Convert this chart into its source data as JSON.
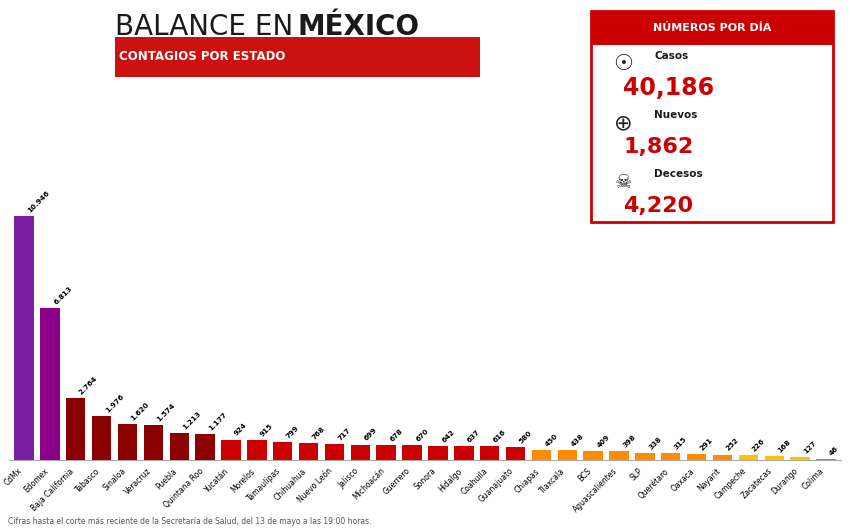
{
  "categories": [
    "CdMx",
    "Edomex",
    "Baja California",
    "Tabasco",
    "Sinaloa",
    "Veracruz",
    "Puebla",
    "Quintana Roo",
    "Yucatán",
    "Morelos",
    "Tamaulipas",
    "Chihuahua",
    "Nuevo León",
    "Jalisco",
    "Michoacán",
    "Guerrero",
    "Sonora",
    "Hidalgo",
    "Coahuila",
    "Guanajuato",
    "Chiapas",
    "Tlaxcala",
    "BCS",
    "Aguascalientes",
    "SLP",
    "Querétaro",
    "Oaxaca",
    "Nayarit",
    "Campeche",
    "Zacatecas",
    "Durango",
    "Colima"
  ],
  "values": [
    10946,
    6813,
    2764,
    1976,
    1620,
    1574,
    1213,
    1177,
    924,
    915,
    799,
    768,
    717,
    699,
    678,
    670,
    642,
    637,
    616,
    580,
    450,
    438,
    409,
    398,
    338,
    315,
    291,
    252,
    226,
    168,
    127,
    46
  ],
  "bar_colors": [
    "#7B1FA2",
    "#8B008B",
    "#8B0000",
    "#8B0000",
    "#8B0000",
    "#8B0000",
    "#8B0000",
    "#8B0000",
    "#CC0000",
    "#CC0000",
    "#CC0000",
    "#CC0000",
    "#CC0000",
    "#CC0000",
    "#CC0000",
    "#CC0000",
    "#CC0000",
    "#CC0000",
    "#CC0000",
    "#CC0000",
    "#FF8C00",
    "#FF8C00",
    "#FF8C00",
    "#FF8C00",
    "#FF8C00",
    "#FF8C00",
    "#FF8C00",
    "#FF8C00",
    "#FFC200",
    "#FFC200",
    "#FFC200",
    "#00BCD4"
  ],
  "value_labels": [
    "10.946",
    "6.813",
    "2.764",
    "1.976",
    "1.620",
    "1.574",
    "1.213",
    "1.177",
    "924",
    "915",
    "799",
    "768",
    "717",
    "699",
    "678",
    "670",
    "642",
    "637",
    "616",
    "580",
    "450",
    "438",
    "409",
    "398",
    "338",
    "315",
    "291",
    "252",
    "226",
    "168",
    "127",
    "46"
  ],
  "title_normal": "BALANCE EN ",
  "title_bold": "MÉXICO",
  "subtitle": "CONTAGIOS POR ESTADO",
  "bg_color": "#FFFFFF",
  "footnote": "Cifras hasta el corte más reciente de la Secretaría de Salud, del 13 de mayo a las 19:00 horas.",
  "box_title": "NÚMEROS POR DÍA",
  "casos_label": "Casos",
  "casos_value": "40,186",
  "nuevos_label": "Nuevos",
  "nuevos_value": "1,862",
  "decesos_label": "Decesos",
  "decesos_value": "4,220",
  "red_color": "#CC0000",
  "subtitle_bg": "#CC1111"
}
